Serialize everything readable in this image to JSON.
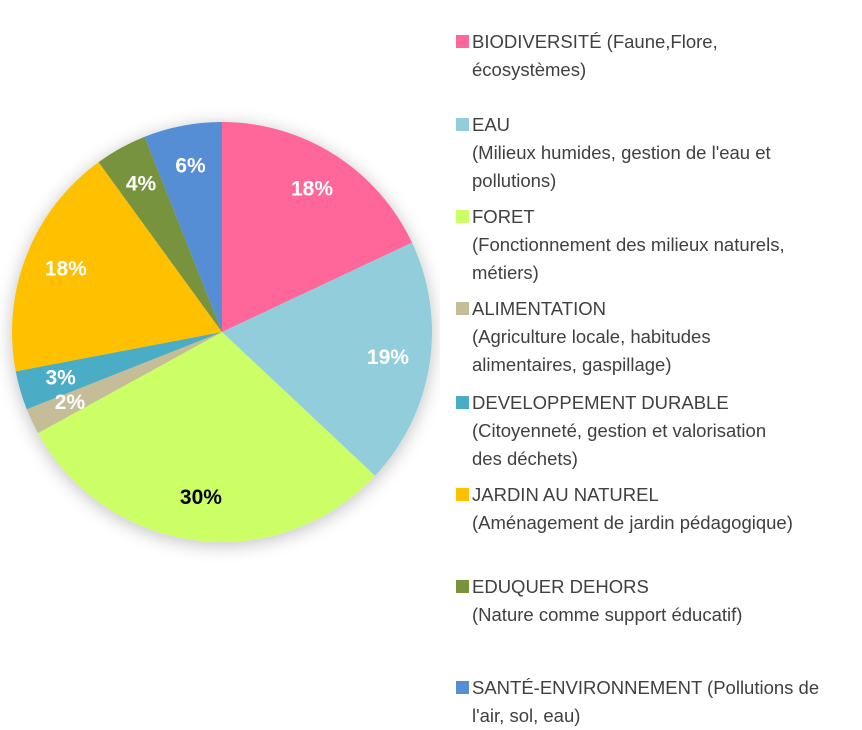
{
  "chart_data": {
    "type": "pie",
    "categories": [
      "BIODIVERSITÉ (Faune,Flore,\nécosystèmes)",
      "EAU\n(Milieux humides, gestion de l'eau et\npollutions)",
      "FORET\n(Fonctionnement des milieux naturels,\nmétiers)",
      "ALIMENTATION\n(Agriculture locale, habitudes\nalimentaires, gaspillage)",
      "DEVELOPPEMENT DURABLE\n(Citoyenneté, gestion et valorisation\ndes déchets)",
      "JARDIN AU NATUREL\n(Aménagement de jardin pédagogique)",
      "EDUQUER DEHORS\n(Nature comme support éducatif)",
      "SANTÉ-ENVIRONNEMENT (Pollutions de\nl'air, sol, eau)"
    ],
    "values": [
      18,
      19,
      30,
      2,
      3,
      18,
      4,
      6
    ],
    "value_labels": [
      "18%",
      "19%",
      "30%",
      "2%",
      "3%",
      "18%",
      "4%",
      "6%"
    ],
    "colors": [
      "#ff6699",
      "#92cddc",
      "#ccff66",
      "#c4bd97",
      "#4bacc6",
      "#ffc000",
      "#77933c",
      "#558ed5"
    ],
    "label_colors": [
      "#ffffff",
      "#ffffff",
      "#000000",
      "#ffffff",
      "#ffffff",
      "#ffffff",
      "#ffffff",
      "#ffffff"
    ]
  }
}
